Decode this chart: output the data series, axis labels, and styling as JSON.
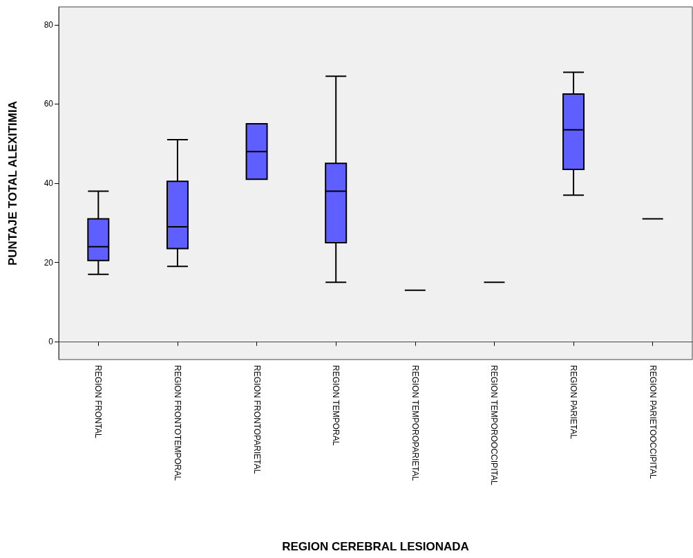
{
  "chart_data": {
    "type": "box",
    "xlabel": "REGION CEREBRAL LESIONADA",
    "ylabel": "PUNTAJE TOTAL ALEXITIMIA",
    "categories": [
      "REGION FRONTAL",
      "REGION FRONTOTEMPORAL",
      "REGION FRONTOPARIETAL",
      "REGION TEMPORAL",
      "REGION TEMPOROPARIETAL",
      "REGION TEMPOROOCCIPITAL",
      "REGION PARIETAL",
      "REGION PARIETOOCCIPITAL"
    ],
    "boxes": [
      {
        "low": 17,
        "q1": 20.5,
        "median": 24,
        "q3": 31,
        "high": 38
      },
      {
        "low": 19,
        "q1": 23.5,
        "median": 29,
        "q3": 40.5,
        "high": 51
      },
      {
        "low": 41,
        "q1": 41,
        "median": 48,
        "q3": 55,
        "high": 55
      },
      {
        "low": 15,
        "q1": 25,
        "median": 38,
        "q3": 45,
        "high": 67
      },
      {
        "low": 13,
        "q1": 13,
        "median": 13,
        "q3": 13,
        "high": 13
      },
      {
        "low": 15,
        "q1": 15,
        "median": 15,
        "q3": 15,
        "high": 15
      },
      {
        "low": 37,
        "q1": 43.5,
        "median": 53.5,
        "q3": 62.5,
        "high": 68
      },
      {
        "low": 31,
        "q1": 31,
        "median": 31,
        "q3": 31,
        "high": 31
      }
    ],
    "colors": [
      "#5f5fff",
      "#5f5fff",
      "#5f5fff",
      "#5f5fff",
      "#000000",
      "#000000",
      "#5f5fff",
      "#000000"
    ],
    "ylim": [
      -4.5,
      84.5
    ],
    "yticks": [
      0,
      20,
      40,
      60,
      80
    ]
  }
}
